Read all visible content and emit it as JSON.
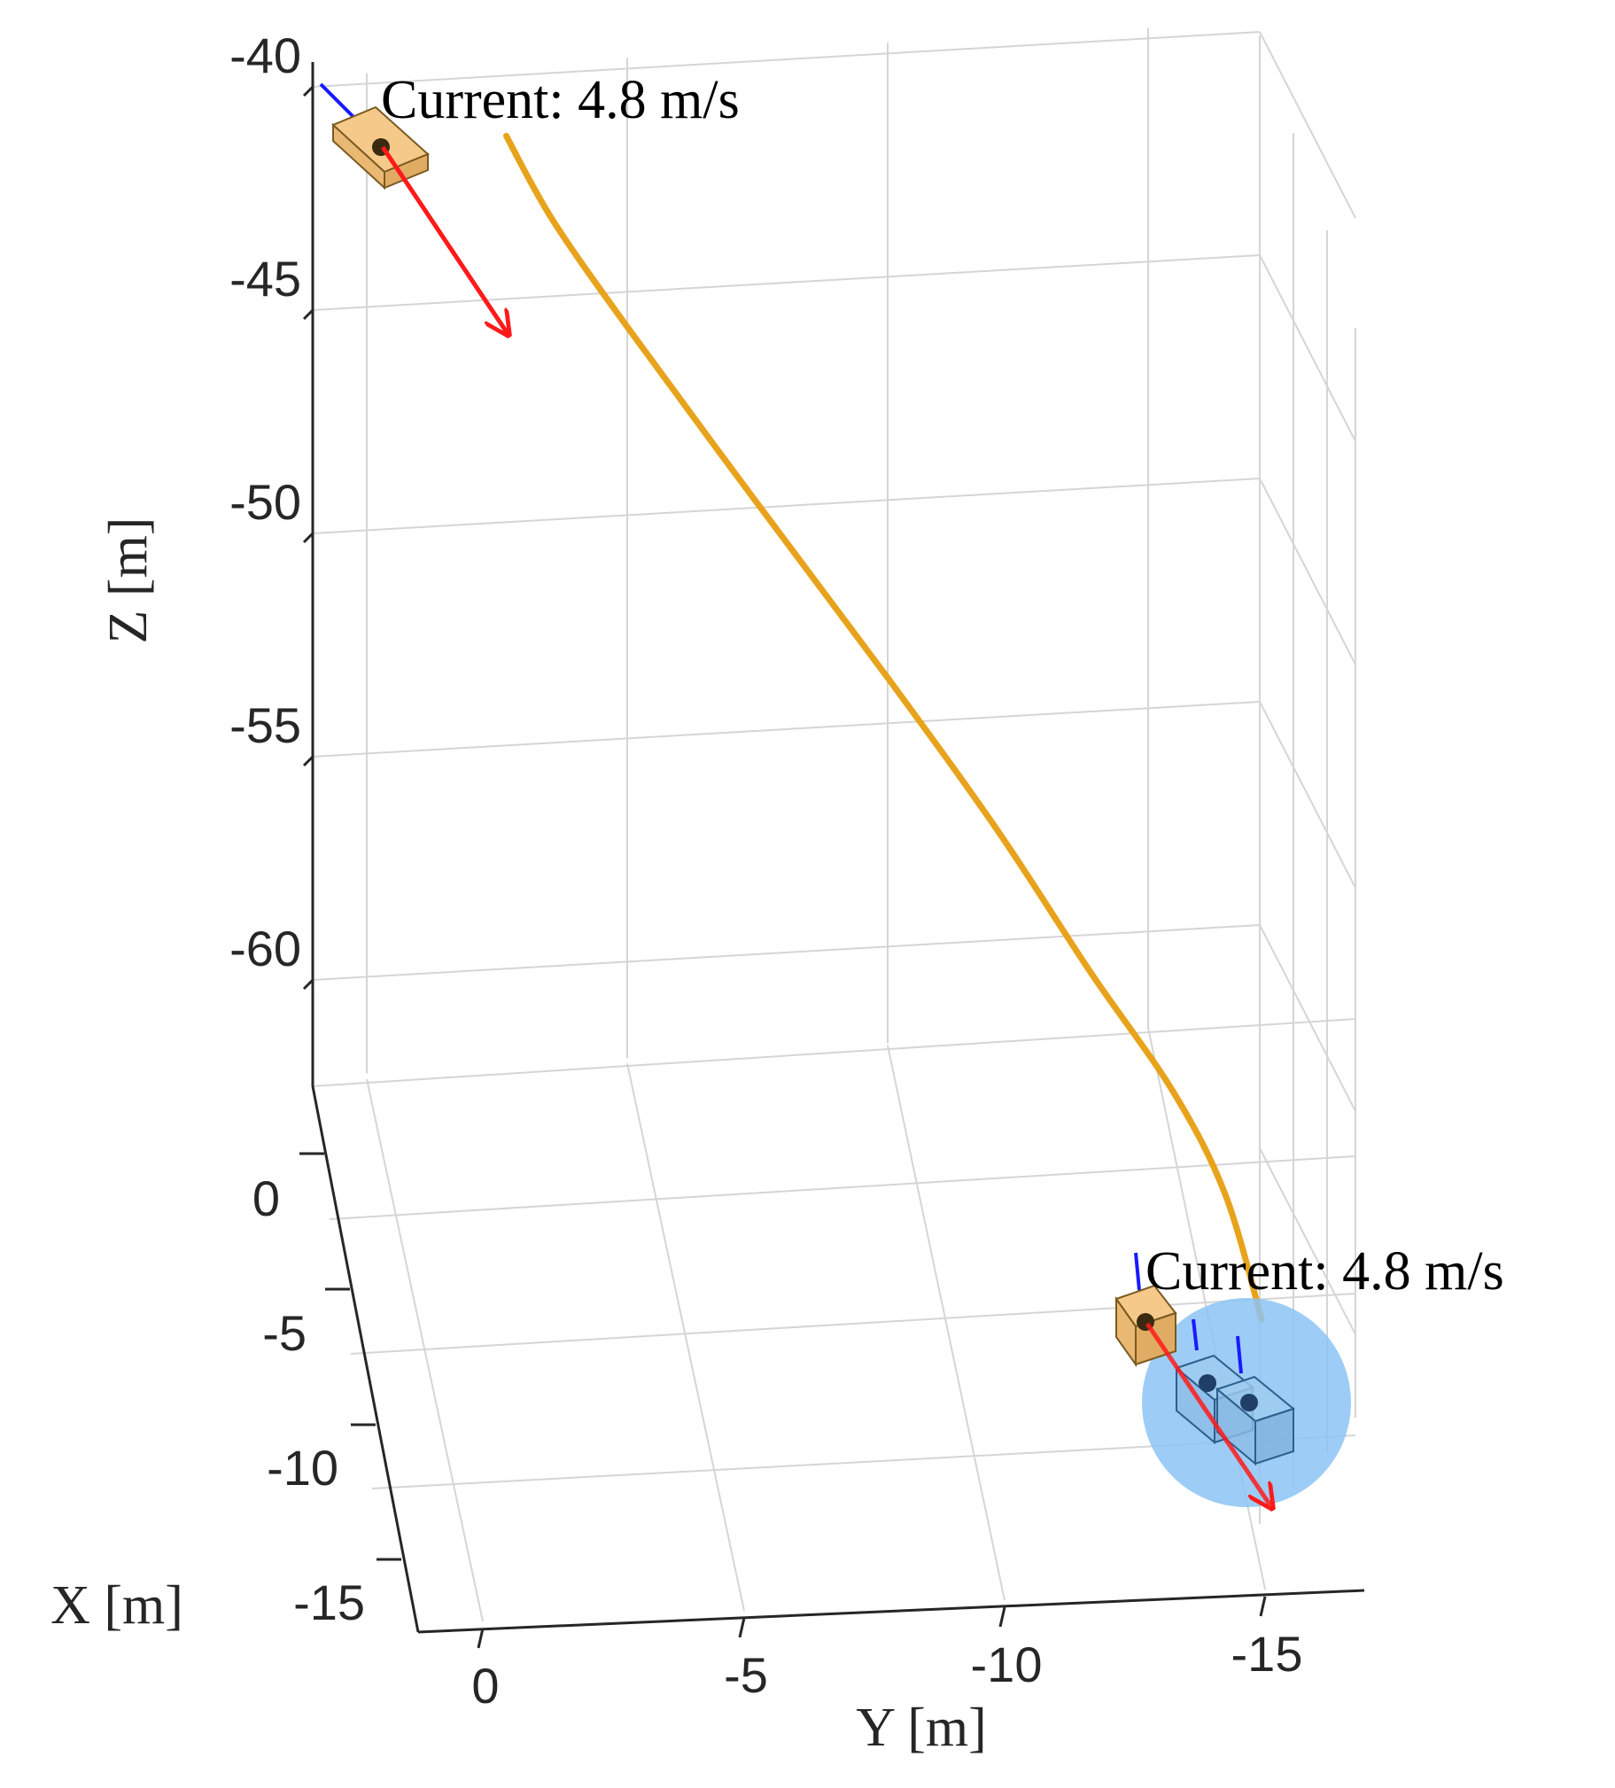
{
  "chart_data": {
    "type": "line",
    "view": "3d",
    "grid": true,
    "xlabel": "X [m]",
    "ylabel": "Y [m]",
    "zlabel": "Z [m]",
    "xticks": [
      "0",
      "-5",
      "-10",
      "-15"
    ],
    "yticks": [
      "0",
      "-5",
      "-10",
      "-15"
    ],
    "zticks": [
      "-40",
      "-45",
      "-50",
      "-55",
      "-60"
    ],
    "xlim": [
      -15,
      0
    ],
    "ylim": [
      -17,
      1
    ],
    "zlim": [
      -63,
      -40
    ],
    "series": [
      {
        "kind": "trajectory",
        "color": "#e8a31c",
        "points": [
          {
            "y": -0.4,
            "z": -41.1
          },
          {
            "y": -1.3,
            "z": -43.0
          },
          {
            "y": -2.8,
            "z": -45.5
          },
          {
            "y": -5.2,
            "z": -49.3
          },
          {
            "y": -7.7,
            "z": -53.2
          },
          {
            "y": -9.8,
            "z": -56.6
          },
          {
            "y": -11.6,
            "z": -59.8
          },
          {
            "y": -13.2,
            "z": -62.5
          },
          {
            "y": -14.2,
            "z": -64.8
          },
          {
            "y": -14.9,
            "z": -67.6
          }
        ]
      }
    ],
    "annotations": [
      {
        "text": "Current: 4.8 m/s",
        "position": "start"
      },
      {
        "text": "Current: 4.8 m/s",
        "position": "end"
      }
    ],
    "markers": [
      {
        "kind": "vehicle-start",
        "color": "#f5c98a"
      },
      {
        "kind": "vehicle-end",
        "color": "#f5c98a"
      },
      {
        "kind": "target-ghost",
        "color": "#9fcaef"
      },
      {
        "kind": "target-ghost",
        "color": "#9fcaef"
      },
      {
        "kind": "target-sphere",
        "color": "#8cc4f5"
      }
    ],
    "colors": {
      "trajectory": "#e8a31c",
      "current_arrow": "#ff1a1a",
      "heading": "#1a1aff",
      "grid": "#d5d5d5",
      "axis": "#262626"
    }
  }
}
